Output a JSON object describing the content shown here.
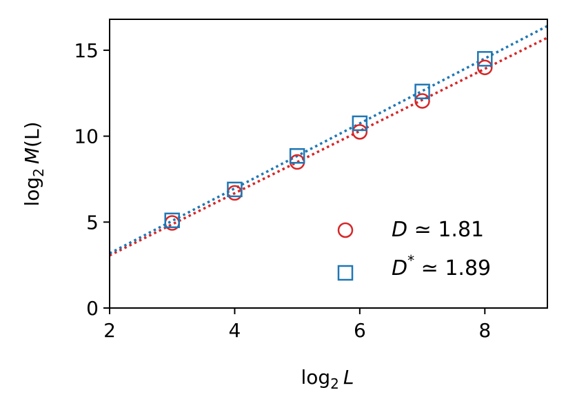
{
  "chart_data": {
    "type": "scatter",
    "xlabel": "log₂ L",
    "ylabel": "log₂ M(L)",
    "xlim": [
      2,
      9
    ],
    "ylim": [
      0,
      16.8
    ],
    "x_ticks": [
      "2",
      "4",
      "6",
      "8"
    ],
    "y_ticks": [
      "0",
      "5",
      "10",
      "15"
    ],
    "grid": false,
    "legend_position": "lower-right",
    "series": [
      {
        "name": "D ≃ 1.81",
        "marker": "circle",
        "color": "#d62728",
        "x": [
          3,
          4,
          5,
          6,
          7,
          8
        ],
        "y": [
          4.95,
          6.7,
          8.5,
          10.25,
          12.05,
          14.0
        ],
        "fit_line": {
          "slope": 1.81,
          "intercept": -0.56,
          "x_range": [
            2,
            9
          ]
        }
      },
      {
        "name": "D* ≃ 1.89",
        "marker": "square",
        "color": "#1f77b4",
        "x": [
          3,
          4,
          5,
          6,
          7,
          8
        ],
        "y": [
          5.1,
          6.9,
          8.85,
          10.75,
          12.6,
          14.5
        ],
        "fit_line": {
          "slope": 1.89,
          "intercept": -0.6,
          "x_range": [
            2,
            9
          ]
        }
      }
    ]
  },
  "legend": {
    "item1": {
      "prefix": "D",
      "sup": "",
      "value": " ≃ 1.81"
    },
    "item2": {
      "prefix": "D",
      "sup": "*",
      "value": " ≃ 1.89"
    }
  },
  "axes": {
    "xlabel_main": "log",
    "xlabel_sub": "2",
    "xlabel_var": "L",
    "ylabel_main": "log",
    "ylabel_sub": "2",
    "ylabel_var": "M",
    "ylabel_rest": "(L)"
  }
}
